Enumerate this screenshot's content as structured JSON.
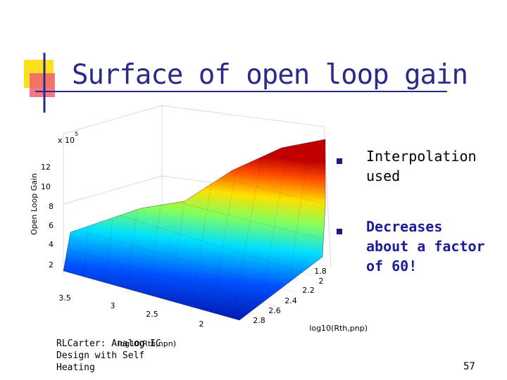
{
  "slide": {
    "title": "Surface of open loop gain",
    "bullets": [
      {
        "text": "Interpolation used"
      },
      {
        "text": "Decreases about a factor of 60!"
      }
    ],
    "footer": [
      "RLCarter: Analog IC",
      "Design with Self",
      "Heating"
    ],
    "page": "57"
  },
  "plot": {
    "zlabel": "Open Loop Gain",
    "multiplier": "x 10",
    "exponent": "5",
    "zticks": [
      "12",
      "10",
      "8",
      "6",
      "4",
      "2"
    ],
    "xlabel": "log10(Rth,npn)",
    "xticks": [
      "3.5",
      "3",
      "2.5",
      "2"
    ],
    "ylabel": "log10(Rth,pnp)",
    "yticks": [
      "1.8",
      "2",
      "2.2",
      "2.4",
      "2.6",
      "2.8"
    ]
  }
}
